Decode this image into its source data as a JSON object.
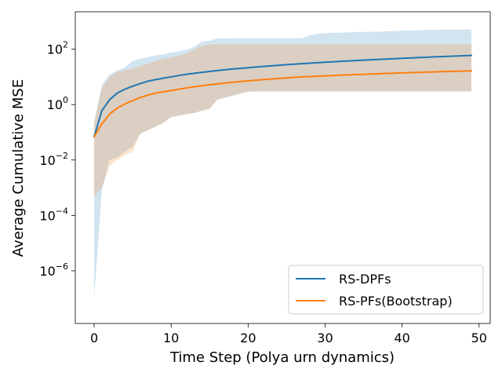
{
  "chart_data": {
    "type": "line",
    "title": "",
    "xlabel": "Time Step (Polya urn dynamics)",
    "ylabel": "Average Cumulative MSE",
    "xlim": [
      -2.45,
      51.45
    ],
    "ylim_log10": [
      -7.9,
      3.35
    ],
    "yscale": "log",
    "x_ticks": [
      0,
      10,
      20,
      30,
      40,
      50
    ],
    "y_ticks_exponents": [
      -6,
      -4,
      -2,
      0,
      2
    ],
    "grid": false,
    "legend_position": "lower-right",
    "series": [
      {
        "name": "RS-DPFs",
        "color": "#1f77b4",
        "band_color": "#1f77b4",
        "band_opacity": 0.2,
        "x": [
          0,
          1,
          2,
          3,
          4,
          5,
          6,
          7,
          8,
          9,
          10,
          11,
          12,
          13,
          14,
          15,
          16,
          17,
          18,
          19,
          20,
          21,
          22,
          23,
          24,
          25,
          26,
          27,
          28,
          29,
          30,
          31,
          32,
          33,
          34,
          35,
          36,
          37,
          38,
          39,
          40,
          41,
          42,
          43,
          44,
          45,
          46,
          47,
          48,
          49
        ],
        "mean": [
          0.07,
          0.6,
          1.5,
          2.6,
          3.6,
          4.6,
          5.8,
          7.0,
          8.0,
          9.0,
          10.0,
          11.2,
          12.4,
          13.5,
          14.6,
          15.7,
          16.9,
          18.0,
          19.2,
          20.3,
          21.5,
          22.7,
          23.8,
          25.0,
          26.2,
          27.5,
          28.7,
          30.0,
          31.2,
          32.5,
          33.8,
          35.0,
          36.3,
          37.6,
          38.9,
          40.2,
          41.5,
          42.8,
          44.1,
          45.5,
          46.8,
          48.2,
          49.6,
          51.0,
          52.4,
          53.8,
          55.3,
          56.7,
          58.2,
          59.7
        ],
        "lower": [
          1e-07,
          0.0008,
          0.01,
          0.012,
          0.02,
          0.03,
          0.09,
          0.12,
          0.16,
          0.22,
          0.35,
          0.4,
          0.45,
          0.5,
          0.6,
          0.7,
          1.5,
          1.8,
          2.1,
          2.5,
          2.9,
          3.0,
          3.0,
          3.0,
          3.0,
          3.0,
          3.0,
          3.0,
          3.0,
          3.0,
          3.0,
          3.0,
          3.0,
          3.0,
          3.0,
          3.0,
          3.0,
          3.0,
          3.0,
          3.0,
          3.0,
          3.0,
          3.0,
          3.0,
          3.0,
          3.0,
          3.0,
          3.0,
          3.0,
          3.0
        ],
        "upper": [
          0.25,
          5.0,
          12.0,
          17.0,
          22.0,
          38.0,
          45.0,
          52.0,
          60.0,
          65.0,
          75.0,
          85.0,
          95.0,
          120.0,
          190.0,
          200.0,
          245.0,
          245.0,
          250.0,
          250.0,
          250.0,
          250.0,
          250.0,
          250.0,
          250.0,
          250.0,
          250.0,
          250.0,
          320.0,
          360.0,
          380.0,
          390.0,
          395.0,
          400.0,
          420.0,
          420.0,
          420.0,
          430.0,
          440.0,
          450.0,
          460.0,
          470.0,
          480.0,
          490.0,
          500.0,
          510.0,
          510.0,
          510.0,
          510.0,
          510.0
        ]
      },
      {
        "name": "RS-PFs(Bootstrap)",
        "color": "#ff7f0e",
        "band_color": "#ff7f0e",
        "band_opacity": 0.2,
        "x": [
          0,
          1,
          2,
          3,
          4,
          5,
          6,
          7,
          8,
          9,
          10,
          11,
          12,
          13,
          14,
          15,
          16,
          17,
          18,
          19,
          20,
          21,
          22,
          23,
          24,
          25,
          26,
          27,
          28,
          29,
          30,
          31,
          32,
          33,
          34,
          35,
          36,
          37,
          38,
          39,
          40,
          41,
          42,
          43,
          44,
          45,
          46,
          47,
          48,
          49
        ],
        "mean": [
          0.07,
          0.2,
          0.45,
          0.75,
          1.05,
          1.4,
          1.8,
          2.2,
          2.6,
          2.9,
          3.2,
          3.6,
          4.0,
          4.4,
          4.8,
          5.2,
          5.6,
          6.0,
          6.4,
          6.8,
          7.2,
          7.6,
          8.0,
          8.4,
          8.8,
          9.2,
          9.6,
          10.0,
          10.3,
          10.6,
          10.9,
          11.2,
          11.5,
          11.8,
          12.1,
          12.4,
          12.7,
          13.0,
          13.3,
          13.6,
          13.9,
          14.2,
          14.5,
          14.8,
          15.1,
          15.4,
          15.7,
          16.0,
          16.3,
          16.6
        ],
        "lower": [
          0.0005,
          0.001,
          0.006,
          0.01,
          0.015,
          0.02,
          0.09,
          0.12,
          0.16,
          0.22,
          0.35,
          0.4,
          0.45,
          0.5,
          0.6,
          0.7,
          1.5,
          1.8,
          2.1,
          2.5,
          2.9,
          3.0,
          3.0,
          3.0,
          3.0,
          3.0,
          3.0,
          3.0,
          3.0,
          3.0,
          3.0,
          3.0,
          3.0,
          3.0,
          3.0,
          3.0,
          3.0,
          3.0,
          3.0,
          3.0,
          3.0,
          3.0,
          3.0,
          3.0,
          3.0,
          3.0,
          3.0,
          3.0,
          3.0,
          3.0
        ],
        "upper": [
          0.2,
          4.0,
          10.0,
          15.0,
          17.0,
          20.0,
          25.0,
          30.0,
          38.0,
          45.0,
          50.0,
          60.0,
          70.0,
          100.0,
          130.0,
          150.0,
          150.0,
          150.0,
          150.0,
          150.0,
          150.0,
          150.0,
          150.0,
          150.0,
          150.0,
          150.0,
          150.0,
          150.0,
          150.0,
          150.0,
          150.0,
          150.0,
          150.0,
          150.0,
          150.0,
          150.0,
          150.0,
          150.0,
          150.0,
          150.0,
          150.0,
          150.0,
          150.0,
          150.0,
          150.0,
          150.0,
          150.0,
          150.0,
          150.0,
          150.0
        ]
      }
    ]
  }
}
